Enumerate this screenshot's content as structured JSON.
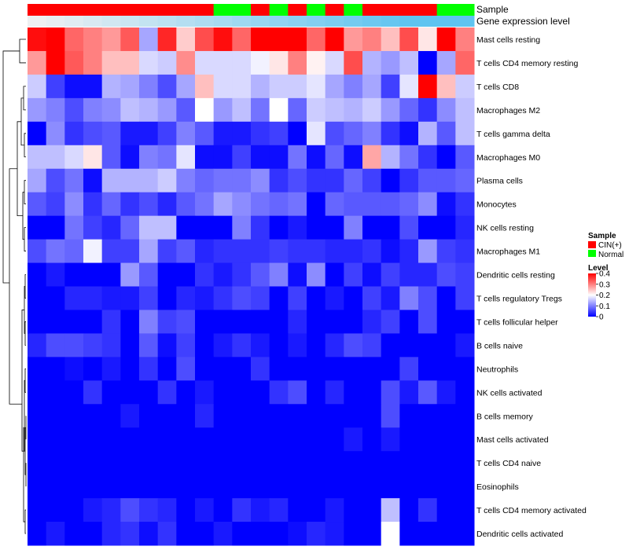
{
  "chart_data": {
    "type": "heatmap",
    "annotation_rows": [
      "Sample",
      "Gene expression level"
    ],
    "legends": {
      "sample": {
        "title": "Sample",
        "entries": [
          {
            "label": "CIN(+)",
            "color": "#ff0000"
          },
          {
            "label": "Normal",
            "color": "#00ff00"
          }
        ]
      },
      "level": {
        "title": "Level",
        "ticks": [
          "0.4",
          "0.3",
          "0.2",
          "0.1",
          "0"
        ],
        "colors": [
          "#0000ff",
          "#ffffff",
          "#ff0000"
        ],
        "range": [
          0,
          0.4
        ]
      }
    },
    "samples": [
      "C",
      "C",
      "C",
      "C",
      "C",
      "C",
      "C",
      "C",
      "C",
      "C",
      "N",
      "N",
      "C",
      "N",
      "C",
      "N",
      "C",
      "N",
      "C",
      "C",
      "C",
      "C",
      "N",
      "N"
    ],
    "expression_level": [
      0.0,
      0.02,
      0.04,
      0.06,
      0.08,
      0.1,
      0.12,
      0.14,
      0.16,
      0.18,
      0.2,
      0.22,
      0.24,
      0.26,
      0.28,
      0.3,
      0.32,
      0.34,
      0.36,
      0.38,
      0.4,
      0.4,
      0.4,
      0.4
    ],
    "rows": [
      "Mast cells resting",
      "T cells CD4 memory resting",
      "T cells CD8",
      "Macrophages M2",
      "T cells gamma delta",
      "Macrophages M0",
      "Plasma cells",
      "Monocytes",
      "NK cells resting",
      "Macrophages M1",
      "Dendritic cells resting",
      "T cells regulatory  Tregs",
      "T cells follicular helper",
      "B cells naive",
      "Neutrophils",
      "NK cells activated",
      "B cells memory",
      "Mast cells activated",
      "T cells CD4 naive",
      "Eosinophils",
      "T cells CD4 memory activated",
      "Dendritic cells activated"
    ],
    "values": [
      [
        0.39,
        0.4,
        0.32,
        0.3,
        0.28,
        0.33,
        0.13,
        0.37,
        0.24,
        0.34,
        0.39,
        0.32,
        0.4,
        0.4,
        0.4,
        0.32,
        0.4,
        0.28,
        0.3,
        0.25,
        0.34,
        0.22,
        0.4,
        0.3
      ],
      [
        0.28,
        0.4,
        0.33,
        0.3,
        0.25,
        0.25,
        0.17,
        0.16,
        0.29,
        0.17,
        0.17,
        0.17,
        0.19,
        0.22,
        0.3,
        0.21,
        0.17,
        0.34,
        0.14,
        0.12,
        0.15,
        0.0,
        0.13,
        0.32
      ],
      [
        0.16,
        0.05,
        0.01,
        0.01,
        0.14,
        0.13,
        0.1,
        0.06,
        0.13,
        0.25,
        0.17,
        0.17,
        0.14,
        0.16,
        0.16,
        0.18,
        0.13,
        0.1,
        0.13,
        0.05,
        0.18,
        0.4,
        0.25,
        0.16
      ],
      [
        0.12,
        0.1,
        0.06,
        0.1,
        0.11,
        0.15,
        0.14,
        0.12,
        0.07,
        0.2,
        0.12,
        0.15,
        0.09,
        0.2,
        0.08,
        0.16,
        0.15,
        0.14,
        0.16,
        0.12,
        0.08,
        0.04,
        0.11,
        0.15
      ],
      [
        0.0,
        0.11,
        0.04,
        0.06,
        0.07,
        0.02,
        0.02,
        0.05,
        0.1,
        0.07,
        0.02,
        0.02,
        0.04,
        0.05,
        0.0,
        0.18,
        0.06,
        0.08,
        0.1,
        0.04,
        0.01,
        0.14,
        0.07,
        0.15
      ],
      [
        0.15,
        0.15,
        0.17,
        0.22,
        0.07,
        0.01,
        0.1,
        0.09,
        0.18,
        0.01,
        0.01,
        0.05,
        0.01,
        0.01,
        0.09,
        0.01,
        0.08,
        0.01,
        0.27,
        0.14,
        0.09,
        0.04,
        0.0,
        0.07
      ],
      [
        0.13,
        0.06,
        0.09,
        0.01,
        0.14,
        0.14,
        0.14,
        0.16,
        0.1,
        0.08,
        0.09,
        0.09,
        0.11,
        0.04,
        0.06,
        0.04,
        0.04,
        0.08,
        0.05,
        0.0,
        0.04,
        0.07,
        0.07,
        0.08
      ],
      [
        0.07,
        0.05,
        0.11,
        0.04,
        0.08,
        0.04,
        0.06,
        0.03,
        0.07,
        0.09,
        0.13,
        0.11,
        0.09,
        0.08,
        0.09,
        0.0,
        0.08,
        0.07,
        0.07,
        0.07,
        0.08,
        0.11,
        0.01,
        0.04
      ],
      [
        0.0,
        0.0,
        0.09,
        0.05,
        0.03,
        0.08,
        0.15,
        0.15,
        0.0,
        0.0,
        0.0,
        0.1,
        0.04,
        0.0,
        0.02,
        0.0,
        0.0,
        0.1,
        0.0,
        0.0,
        0.06,
        0.0,
        0.0,
        0.03
      ],
      [
        0.06,
        0.09,
        0.08,
        0.19,
        0.05,
        0.05,
        0.13,
        0.05,
        0.07,
        0.03,
        0.04,
        0.04,
        0.04,
        0.05,
        0.04,
        0.04,
        0.03,
        0.03,
        0.04,
        0.01,
        0.03,
        0.12,
        0.05,
        0.04
      ],
      [
        0.0,
        0.02,
        0.0,
        0.0,
        0.0,
        0.12,
        0.07,
        0.0,
        0.0,
        0.04,
        0.02,
        0.04,
        0.07,
        0.1,
        0.01,
        0.11,
        0.0,
        0.05,
        0.01,
        0.05,
        0.03,
        0.03,
        0.06,
        0.05
      ],
      [
        0.0,
        0.0,
        0.03,
        0.03,
        0.02,
        0.02,
        0.05,
        0.0,
        0.03,
        0.02,
        0.04,
        0.06,
        0.05,
        0.0,
        0.05,
        0.0,
        0.02,
        0.0,
        0.05,
        0.02,
        0.1,
        0.06,
        0.0,
        0.05
      ],
      [
        0.0,
        0.0,
        0.0,
        0.0,
        0.04,
        0.0,
        0.1,
        0.05,
        0.06,
        0.0,
        0.0,
        0.0,
        0.0,
        0.0,
        0.03,
        0.0,
        0.0,
        0.0,
        0.03,
        0.05,
        0.0,
        0.06,
        0.0,
        0.0
      ],
      [
        0.03,
        0.06,
        0.06,
        0.05,
        0.04,
        0.0,
        0.07,
        0.01,
        0.05,
        0.0,
        0.02,
        0.04,
        0.02,
        0.0,
        0.02,
        0.0,
        0.03,
        0.06,
        0.05,
        0.0,
        0.0,
        0.0,
        0.0,
        0.02
      ],
      [
        0.0,
        0.0,
        0.01,
        0.0,
        0.02,
        0.0,
        0.04,
        0.0,
        0.06,
        0.0,
        0.0,
        0.0,
        0.04,
        0.0,
        0.0,
        0.0,
        0.0,
        0.0,
        0.0,
        0.0,
        0.05,
        0.0,
        0.0,
        0.0
      ],
      [
        0.0,
        0.0,
        0.0,
        0.04,
        0.0,
        0.0,
        0.0,
        0.04,
        0.0,
        0.02,
        0.0,
        0.0,
        0.0,
        0.04,
        0.06,
        0.0,
        0.03,
        0.0,
        0.0,
        0.06,
        0.02,
        0.07,
        0.02,
        0.0
      ],
      [
        0.0,
        0.0,
        0.0,
        0.0,
        0.0,
        0.02,
        0.0,
        0.0,
        0.0,
        0.03,
        0.0,
        0.0,
        0.0,
        0.0,
        0.0,
        0.0,
        0.0,
        0.0,
        0.0,
        0.06,
        0.0,
        0.0,
        0.0,
        0.0
      ],
      [
        0.0,
        0.0,
        0.0,
        0.0,
        0.0,
        0.0,
        0.0,
        0.0,
        0.0,
        0.0,
        0.0,
        0.0,
        0.0,
        0.0,
        0.0,
        0.0,
        0.0,
        0.02,
        0.0,
        0.02,
        0.0,
        0.0,
        0.0,
        0.0
      ],
      [
        0.0,
        0.0,
        0.0,
        0.0,
        0.0,
        0.0,
        0.0,
        0.0,
        0.0,
        0.0,
        0.0,
        0.0,
        0.0,
        0.0,
        0.0,
        0.0,
        0.0,
        0.0,
        0.0,
        0.0,
        0.0,
        0.0,
        0.0,
        0.0
      ],
      [
        0.0,
        0.0,
        0.0,
        0.0,
        0.0,
        0.0,
        0.0,
        0.0,
        0.0,
        0.0,
        0.0,
        0.0,
        0.0,
        0.0,
        0.0,
        0.0,
        0.0,
        0.0,
        0.0,
        0.0,
        0.0,
        0.0,
        0.0,
        0.0
      ],
      [
        0.0,
        0.0,
        0.0,
        0.02,
        0.03,
        0.06,
        0.04,
        0.03,
        0.0,
        0.02,
        0.0,
        0.04,
        0.02,
        0.03,
        0.0,
        0.0,
        0.02,
        0.0,
        0.0,
        0.15,
        0.0,
        0.04,
        0.0,
        0.0
      ],
      [
        0.0,
        0.02,
        0.0,
        0.0,
        0.03,
        0.04,
        0.01,
        0.04,
        0.0,
        0.0,
        0.02,
        0.0,
        0.0,
        0.0,
        0.01,
        0.03,
        0.02,
        0.0,
        0.0,
        0.2,
        0.0,
        0.0,
        0.0,
        0.0
      ]
    ]
  }
}
